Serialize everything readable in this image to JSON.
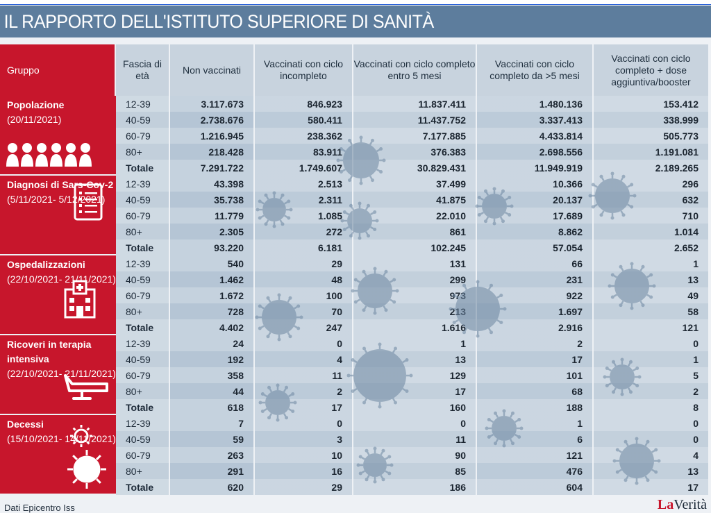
{
  "title": "IL RAPPORTO DELL'ISTITUTO SUPERIORE DI SANITÀ",
  "columns": {
    "group": "Gruppo",
    "age": "Fascia di età",
    "c1": "Non vaccinati",
    "c2": "Vaccinati con ciclo incompleto",
    "c3": "Vaccinati con ciclo completo entro 5 mesi",
    "c4": "Vaccinati con ciclo completo da >5 mesi",
    "c5": "Vaccinati con ciclo completo + dose aggiuntiva/booster"
  },
  "groups": [
    {
      "title": "Popolazione",
      "subtitle": "(20/11/2021)",
      "icon": "people-icon",
      "rows": [
        [
          "12-39",
          "3.117.673",
          "846.923",
          "11.837.411",
          "1.480.136",
          "153.412"
        ],
        [
          "40-59",
          "2.738.676",
          "580.411",
          "11.437.752",
          "3.337.413",
          "338.999"
        ],
        [
          "60-79",
          "1.216.945",
          "238.362",
          "7.177.885",
          "4.433.814",
          "505.773"
        ],
        [
          "80+",
          "218.428",
          "83.911",
          "376.383",
          "2.698.556",
          "1.191.081"
        ],
        [
          "Totale",
          "7.291.722",
          "1.749.607",
          "30.829.431",
          "11.949.919",
          "2.189.265"
        ]
      ]
    },
    {
      "title": "Diagnosi di Sars-Cov-2",
      "subtitle": "(5/11/2021- 5/12/2021)",
      "icon": "clipboard-icon",
      "rows": [
        [
          "12-39",
          "43.398",
          "2.513",
          "37.499",
          "10.366",
          "296"
        ],
        [
          "40-59",
          "35.738",
          "2.311",
          "41.875",
          "20.137",
          "632"
        ],
        [
          "60-79",
          "11.779",
          "1.085",
          "22.010",
          "17.689",
          "710"
        ],
        [
          "80+",
          "2.305",
          "272",
          "861",
          "8.862",
          "1.014"
        ],
        [
          "Totale",
          "93.220",
          "6.181",
          "102.245",
          "57.054",
          "2.652"
        ]
      ]
    },
    {
      "title": "Ospedalizzazioni",
      "subtitle": "(22/10/2021- 21/11/2021)",
      "icon": "hospital-icon",
      "rows": [
        [
          "12-39",
          "540",
          "29",
          "131",
          "66",
          "1"
        ],
        [
          "40-59",
          "1.462",
          "48",
          "299",
          "231",
          "13"
        ],
        [
          "60-79",
          "1.672",
          "100",
          "973",
          "922",
          "49"
        ],
        [
          "80+",
          "728",
          "70",
          "213",
          "1.697",
          "58"
        ],
        [
          "Totale",
          "4.402",
          "247",
          "1.616",
          "2.916",
          "121"
        ]
      ]
    },
    {
      "title": "Ricoveri in terapia intensiva",
      "subtitle": "(22/10/2021- 21/11/2021)",
      "icon": "bed-icon",
      "rows": [
        [
          "12-39",
          "24",
          "0",
          "1",
          "2",
          "0"
        ],
        [
          "40-59",
          "192",
          "4",
          "13",
          "17",
          "1"
        ],
        [
          "60-79",
          "358",
          "11",
          "129",
          "101",
          "5"
        ],
        [
          "80+",
          "44",
          "2",
          "17",
          "68",
          "2"
        ],
        [
          "Totale",
          "618",
          "17",
          "160",
          "188",
          "8"
        ]
      ]
    },
    {
      "title": "Decessi",
      "subtitle": "(15/10/2021- 14/11/2021)",
      "icon": "virus-icon",
      "rows": [
        [
          "12-39",
          "7",
          "0",
          "0",
          "1",
          "0"
        ],
        [
          "40-59",
          "59",
          "3",
          "11",
          "6",
          "0"
        ],
        [
          "60-79",
          "263",
          "10",
          "90",
          "121",
          "4"
        ],
        [
          "80+",
          "291",
          "16",
          "85",
          "476",
          "13"
        ],
        [
          "Totale",
          "620",
          "29",
          "186",
          "604",
          "17"
        ]
      ]
    }
  ],
  "footer": {
    "source": "Dati Epicentro Iss",
    "logo_prefix": "La",
    "logo_suffix": "Verità"
  },
  "colors": {
    "header_bg": "#5d7d9d",
    "side_red": "#c7162c",
    "cell_blue": "#bccbd9"
  },
  "chart_data": {
    "type": "table",
    "title": "IL RAPPORTO DELL'ISTITUTO SUPERIORE DI SANITÀ",
    "columns": [
      "Gruppo",
      "Fascia di età",
      "Non vaccinati",
      "Vaccinati con ciclo incompleto",
      "Vaccinati con ciclo completo entro 5 mesi",
      "Vaccinati con ciclo completo da >5 mesi",
      "Vaccinati con ciclo completo + dose aggiuntiva/booster"
    ],
    "groups": [
      "Popolazione (20/11/2021)",
      "Diagnosi di Sars-Cov-2 (5/11/2021-5/12/2021)",
      "Ospedalizzazioni (22/10/2021-21/11/2021)",
      "Ricoveri in terapia intensiva (22/10/2021-21/11/2021)",
      "Decessi (15/10/2021-14/11/2021)"
    ],
    "age_bands": [
      "12-39",
      "40-59",
      "60-79",
      "80+",
      "Totale"
    ]
  }
}
